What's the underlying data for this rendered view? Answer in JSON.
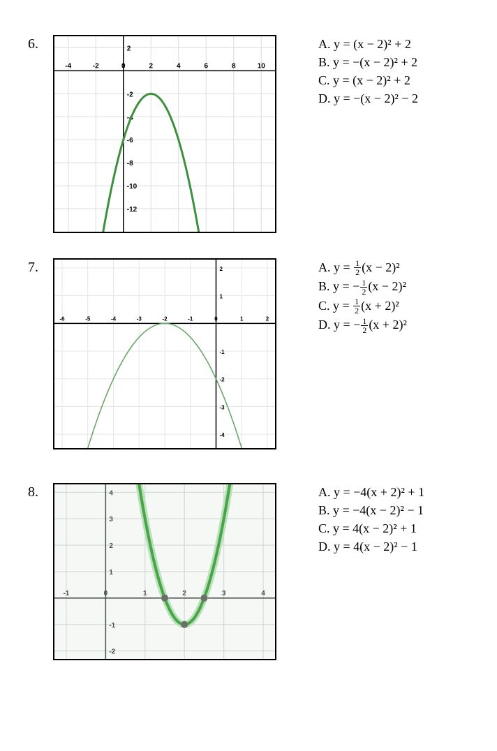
{
  "problems": [
    {
      "number": "6.",
      "answers": [
        "A. y = (x − 2)² + 2",
        "B. y = −(x − 2)² + 2",
        "C. y = (x − 2)² + 2",
        "D. y = −(x − 2)² − 2"
      ],
      "graph": {
        "type": "parabola",
        "background_color": "#ffffff",
        "grid_color": "#d9dde0",
        "axis_color": "#000000",
        "x_range": [
          -5,
          11
        ],
        "y_range": [
          -14,
          3
        ],
        "x_ticks": [
          -4,
          -2,
          0,
          2,
          4,
          6,
          8,
          10
        ],
        "y_ticks": [
          2,
          0,
          -2,
          -4,
          -6,
          -8,
          -10,
          -12
        ],
        "tick_labels_x": [
          "-4",
          "-2",
          "0",
          "2",
          "4",
          "6",
          "8",
          "10"
        ],
        "tick_labels_y": [
          "2",
          "",
          "-2",
          "-4",
          "-6",
          "-8",
          "-10",
          "-12"
        ],
        "label_fontsize": 10,
        "curve_color": "#3e8f3e",
        "curve_width": 3,
        "a": -1,
        "h": 2,
        "k": -2,
        "t_range": [
          -1.6,
          5.6
        ]
      }
    },
    {
      "number": "7.",
      "answers_html": [
        "A. y = {FRAC:1/2}(x − 2)²",
        "B. y = −{FRAC:1/2}(x − 2)²",
        "C. y = {FRAC:1/2}(x + 2)²",
        "D. y = −{FRAC:1/2}(x + 2)²"
      ],
      "graph": {
        "type": "parabola",
        "background_color": "#ffffff",
        "grid_color": "#e4e7e9",
        "axis_color": "#000000",
        "x_range": [
          -6.3,
          2.3
        ],
        "y_range": [
          -4.5,
          2.3
        ],
        "x_ticks": [
          -6,
          -5,
          -4,
          -3,
          -2,
          -1,
          0,
          1,
          2
        ],
        "y_ticks": [
          2,
          1,
          0,
          -1,
          -2,
          -3,
          -4
        ],
        "tick_labels_x": [
          "-6",
          "-5",
          "-4",
          "-3",
          "-2",
          "-1",
          "0",
          "1",
          "2"
        ],
        "tick_labels_y": [
          "2",
          "1",
          "",
          "-1",
          "-2",
          "-3",
          "-4"
        ],
        "label_fontsize": 8,
        "curve_color": "#6aa86a",
        "curve_width": 1.6,
        "a": -0.5,
        "h": -2,
        "k": 0,
        "t_range": [
          -5.7,
          1.7
        ]
      }
    },
    {
      "number": "8.",
      "answers": [
        "A. y = −4(x + 2)² + 1",
        "B. y = −4(x − 2)² − 1",
        "C. y = 4(x − 2)² + 1",
        "D. y = 4(x − 2)² − 1"
      ],
      "graph": {
        "type": "parabola",
        "background_color": "#f5f8f5",
        "grid_color": "#cfd6cf",
        "axis_color": "#4a4f4a",
        "x_range": [
          -1.3,
          4.3
        ],
        "y_range": [
          -2.3,
          4.3
        ],
        "x_ticks": [
          -1,
          0,
          1,
          2,
          3,
          4
        ],
        "y_ticks": [
          4,
          3,
          2,
          1,
          0,
          -1,
          -2
        ],
        "tick_labels_x": [
          "-1",
          "0",
          "1",
          "2",
          "3",
          "4"
        ],
        "tick_labels_y": [
          "4",
          "3",
          "2",
          "1",
          "",
          "-1",
          "-2"
        ],
        "label_fontsize": 10,
        "curve_color": "#4aa34a",
        "curve_glow_color": "#b6e2b6",
        "curve_width": 4,
        "a": 4,
        "h": 2,
        "k": -1,
        "t_range": [
          0.8,
          3.2
        ],
        "markers": [
          {
            "x": 1.5,
            "y": 0,
            "color": "#6b6f6b",
            "r": 5
          },
          {
            "x": 2.5,
            "y": 0,
            "color": "#6b6f6b",
            "r": 5
          },
          {
            "x": 2,
            "y": -1,
            "color": "#6b6f6b",
            "r": 5
          }
        ]
      }
    }
  ]
}
